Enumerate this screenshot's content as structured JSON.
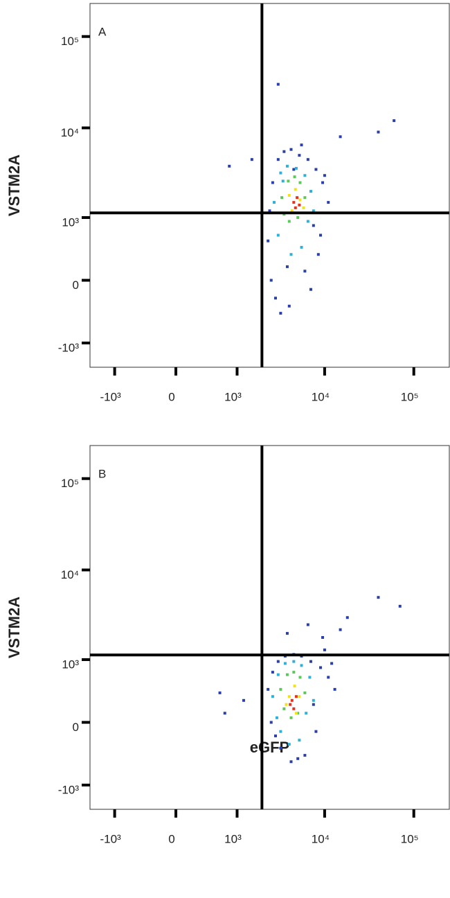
{
  "chart_data": [
    {
      "type": "scatter",
      "label": "A",
      "y_label": "VSTM2A",
      "scale": "biexponential",
      "xlim": [
        -1950,
        250000
      ],
      "ylim": [
        -1900,
        230000
      ],
      "xticks": [
        {
          "value": -1000,
          "label": "-10³"
        },
        0,
        {
          "value": 1000,
          "label": "10³"
        },
        {
          "value": 10000,
          "label": "10⁴"
        },
        {
          "value": 100000,
          "label": "10⁵"
        }
      ],
      "yticks": [
        {
          "value": -1000,
          "label": "-10³"
        },
        0,
        {
          "value": 1000,
          "label": "10³"
        },
        {
          "value": 10000,
          "label": "10⁴"
        },
        {
          "value": 100000,
          "label": "10⁵"
        }
      ],
      "gates": {
        "x": 1960,
        "y": 1135
      },
      "series": [
        {
          "color": "#2b3fa8",
          "x": [
            2300,
            2600,
            3000,
            3500,
            4200,
            5200,
            6500,
            8000,
            9500,
            11000,
            2500,
            2800,
            7000,
            8500,
            3200,
            4000,
            6000,
            10000,
            2400,
            5500,
            7500,
            3800,
            4500,
            15000,
            1500,
            800,
            60000,
            40000,
            3000,
            9000
          ],
          "y": [
            500,
            2500,
            4500,
            5500,
            5800,
            5000,
            4500,
            3500,
            2500,
            1500,
            0,
            -200,
            -100,
            300,
            -400,
            -300,
            100,
            3000,
            1200,
            6500,
            800,
            150,
            3500,
            8000,
            4500,
            3800,
            12000,
            9000,
            30000,
            600
          ]
        },
        {
          "color": "#2fb0d8",
          "x": [
            2700,
            3200,
            3800,
            4800,
            6000,
            7000,
            3000,
            4200,
            5500,
            6500,
            3400,
            7500
          ],
          "y": [
            1500,
            3200,
            3800,
            3600,
            3000,
            2000,
            600,
            300,
            400,
            900,
            2600,
            1200
          ]
        },
        {
          "color": "#5cc85a",
          "x": [
            3300,
            3900,
            4600,
            5300,
            6000,
            4000,
            3500,
            5000
          ],
          "y": [
            1700,
            2600,
            2900,
            2500,
            1700,
            900,
            1100,
            1000
          ]
        },
        {
          "color": "#f2e21c",
          "x": [
            4000,
            4700,
            5300,
            4300,
            5800
          ],
          "y": [
            1800,
            2100,
            1600,
            1200,
            1300
          ]
        },
        {
          "color": "#e8321e",
          "x": [
            4500,
            4900,
            5200,
            4700
          ],
          "y": [
            1500,
            1700,
            1400,
            1300
          ]
        }
      ]
    },
    {
      "type": "scatter",
      "label": "B",
      "y_label": "VSTM2A",
      "x_label": "eGFP",
      "scale": "biexponential",
      "xlim": [
        -1950,
        250000
      ],
      "ylim": [
        -1900,
        230000
      ],
      "xticks": [
        {
          "value": -1000,
          "label": "-10³"
        },
        0,
        {
          "value": 1000,
          "label": "10³"
        },
        {
          "value": 10000,
          "label": "10⁴"
        },
        {
          "value": 100000,
          "label": "10⁵"
        }
      ],
      "yticks": [
        {
          "value": -1000,
          "label": "-10³"
        },
        0,
        {
          "value": 1000,
          "label": "10³"
        },
        {
          "value": 10000,
          "label": "10⁴"
        },
        {
          "value": 100000,
          "label": "10⁵"
        }
      ],
      "gates": {
        "x": 1960,
        "y": 1135
      },
      "series": [
        {
          "color": "#2b3fa8",
          "x": [
            2300,
            2600,
            3000,
            3600,
            4500,
            5500,
            7000,
            9000,
            11000,
            13000,
            2500,
            3200,
            4200,
            6000,
            8000,
            2800,
            5000,
            7500,
            10000,
            1200,
            700,
            600,
            9500,
            15000,
            18000,
            40000,
            70000,
            3800,
            6500,
            12000
          ],
          "y": [
            400,
            700,
            950,
            1100,
            1150,
            1100,
            950,
            800,
            600,
            400,
            0,
            -300,
            -500,
            -400,
            -100,
            -150,
            -450,
            200,
            1300,
            250,
            100,
            350,
            1800,
            2200,
            3000,
            5000,
            4000,
            2000,
            2500,
            900
          ]
        },
        {
          "color": "#2fb0d8",
          "x": [
            2600,
            3000,
            3600,
            4500,
            5500,
            6800,
            7500,
            3200,
            4000,
            5200,
            6200,
            2900
          ],
          "y": [
            300,
            650,
            900,
            950,
            850,
            600,
            250,
            -100,
            -250,
            -200,
            100,
            50
          ]
        },
        {
          "color": "#5cc85a",
          "x": [
            3200,
            3800,
            4500,
            5300,
            6000,
            4200,
            3500,
            5000
          ],
          "y": [
            400,
            650,
            700,
            600,
            350,
            50,
            150,
            100
          ]
        },
        {
          "color": "#f2e21c",
          "x": [
            4000,
            4600,
            5200,
            3700,
            4800
          ],
          "y": [
            300,
            450,
            300,
            200,
            100
          ]
        },
        {
          "color": "#e8321e",
          "x": [
            4300,
            4800,
            4500,
            4100
          ],
          "y": [
            250,
            300,
            150,
            200
          ]
        }
      ]
    }
  ]
}
